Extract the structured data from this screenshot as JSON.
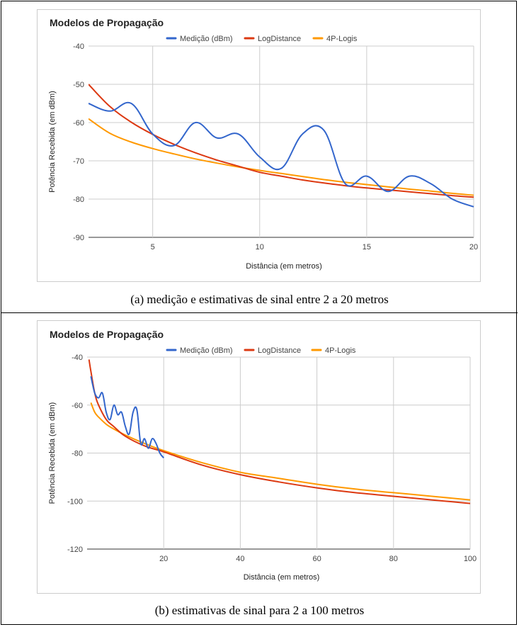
{
  "charts": [
    {
      "caption": "(a) medição e estimativas de sinal entre 2 a 20 metros",
      "chart_data": {
        "type": "line",
        "title": "Modelos de Propagação",
        "xlabel": "Distância (em metros)",
        "ylabel": "Potência Recebida (em dBm)",
        "xlim": [
          2,
          20
        ],
        "ylim": [
          -90,
          -40
        ],
        "xticks": [
          5,
          10,
          15,
          20
        ],
        "yticks": [
          -40,
          -50,
          -60,
          -70,
          -80,
          -90
        ],
        "grid": true,
        "legend_position": "top-center",
        "series": [
          {
            "name": "Medição (dBm)",
            "color": "#3366cc",
            "x": [
              2,
              3,
              4,
              5,
              6,
              7,
              8,
              9,
              10,
              11,
              12,
              13,
              14,
              15,
              16,
              17,
              18,
              19,
              20
            ],
            "y": [
              -55,
              -57,
              -55,
              -63,
              -66,
              -60,
              -64,
              -63,
              -69,
              -72,
              -63,
              -62,
              -76,
              -74,
              -78,
              -74,
              -76,
              -80,
              -82
            ]
          },
          {
            "name": "LogDistance",
            "color": "#dc3912",
            "x": [
              2,
              3,
              4,
              5,
              6,
              7,
              8,
              9,
              10,
              11,
              12,
              13,
              14,
              15,
              16,
              17,
              18,
              19,
              20
            ],
            "y": [
              -50.0,
              -55.8,
              -59.9,
              -63.1,
              -65.7,
              -67.9,
              -69.8,
              -71.4,
              -73.0,
              -74.0,
              -75.0,
              -75.8,
              -76.5,
              -77.1,
              -77.6,
              -78.1,
              -78.6,
              -79.1,
              -79.5
            ]
          },
          {
            "name": "4P-Logis",
            "color": "#ff9900",
            "x": [
              2,
              3,
              4,
              5,
              6,
              7,
              8,
              9,
              10,
              11,
              12,
              13,
              14,
              15,
              16,
              17,
              18,
              19,
              20
            ],
            "y": [
              -59.0,
              -62.8,
              -65.1,
              -66.8,
              -68.2,
              -69.5,
              -70.6,
              -71.6,
              -72.5,
              -73.3,
              -74.1,
              -74.9,
              -75.6,
              -76.2,
              -76.8,
              -77.4,
              -77.9,
              -78.5,
              -79.0
            ]
          }
        ]
      }
    },
    {
      "caption": "(b) estimativas de sinal para 2 a 100 metros",
      "chart_data": {
        "type": "line",
        "title": "Modelos de Propagação",
        "xlabel": "Distância (em metros)",
        "ylabel": "Potência Recebida (em dBm)",
        "xlim": [
          0,
          100
        ],
        "ylim": [
          -120,
          -40
        ],
        "xticks": [
          20,
          40,
          60,
          80,
          100
        ],
        "yticks": [
          -40,
          -60,
          -80,
          -100,
          -120
        ],
        "grid": true,
        "legend_position": "top-center",
        "series": [
          {
            "name": "Medição (dBm)",
            "color": "#3366cc",
            "x": [
              1,
              2,
              3,
              4,
              5,
              6,
              7,
              8,
              9,
              10,
              11,
              12,
              13,
              14,
              15,
              16,
              17,
              18,
              19,
              20
            ],
            "y": [
              -48,
              -55,
              -57,
              -55,
              -63,
              -66,
              -60,
              -64,
              -63,
              -69,
              -72,
              -63,
              -62,
              -76,
              -74,
              -78,
              -74,
              -76,
              -80,
              -82
            ]
          },
          {
            "name": "LogDistance",
            "color": "#dc3912",
            "x": [
              0.5,
              1,
              2,
              3,
              5,
              7,
              10,
              15,
              20,
              30,
              40,
              50,
              60,
              70,
              80,
              90,
              100
            ],
            "y": [
              -41,
              -46,
              -55,
              -60,
              -66,
              -69,
              -73,
              -77,
              -79.5,
              -85,
              -89,
              -92,
              -94.5,
              -96.5,
              -98,
              -99.5,
              -101
            ]
          },
          {
            "name": "4P-Logis",
            "color": "#ff9900",
            "x": [
              1,
              2,
              3,
              5,
              7,
              10,
              15,
              20,
              30,
              40,
              50,
              60,
              70,
              80,
              90,
              100
            ],
            "y": [
              -59,
              -63,
              -65,
              -68,
              -70,
              -72.5,
              -76,
              -79,
              -84,
              -88,
              -90.5,
              -93,
              -95,
              -96.5,
              -98,
              -99.5
            ]
          }
        ]
      }
    }
  ]
}
